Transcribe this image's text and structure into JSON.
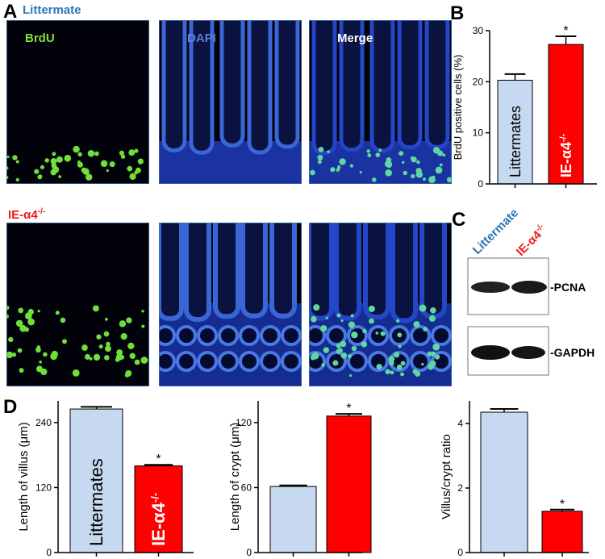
{
  "panel_labels": [
    "A",
    "B",
    "C",
    "D"
  ],
  "image_panels": {
    "row_labels": [
      {
        "text": "Littermate"
      },
      {
        "text": "IE-α4",
        "sup": "-/-"
      }
    ],
    "column_titles": [
      "BrdU",
      "DAPI",
      "Merge"
    ]
  },
  "blot": {
    "column_labels": [
      {
        "text": "Littermate"
      },
      {
        "text": "IE-α4",
        "sup": "-/-"
      }
    ],
    "band_labels": [
      "-PCNA",
      "-GAPDH"
    ]
  },
  "chart_data": [
    {
      "type": "bar",
      "ylabel": "BrdU positive cells (%)",
      "categories": [
        "Littermates",
        {
          "text": "IE-α4",
          "sup": "-/-"
        }
      ],
      "values": [
        20.3,
        27.3
      ],
      "errors": [
        1.2,
        1.6
      ],
      "colors": [
        "#c6d9f1",
        "#ff0000"
      ],
      "ylim": [
        0,
        30
      ],
      "yticks": [
        0,
        10,
        20,
        30
      ],
      "annotations": [
        {
          "text": "*",
          "category": 1
        }
      ]
    },
    {
      "type": "bar",
      "ylabel": "Length of villus (μm)",
      "categories": [
        "Littermates",
        {
          "text": "IE-α4",
          "sup": "-/-"
        }
      ],
      "values": [
        265,
        160
      ],
      "errors": [
        4,
        2
      ],
      "colors": [
        "#c6d9f1",
        "#ff0000"
      ],
      "ylim": [
        0,
        280
      ],
      "yticks": [
        0,
        120,
        240
      ],
      "annotations": [
        {
          "text": "*",
          "category": 1
        }
      ]
    },
    {
      "type": "bar",
      "ylabel": "Length of crypt (μm)",
      "categories": [
        null,
        null
      ],
      "values": [
        61,
        126
      ],
      "errors": [
        1,
        2
      ],
      "colors": [
        "#c6d9f1",
        "#ff0000"
      ],
      "ylim": [
        0,
        140
      ],
      "yticks": [
        0,
        60,
        120
      ],
      "annotations": [
        {
          "text": "*",
          "category": 1
        }
      ]
    },
    {
      "type": "bar",
      "ylabel": "Villus/crypt ratio",
      "categories": [
        null,
        null
      ],
      "values": [
        4.35,
        1.28
      ],
      "errors": [
        0.1,
        0.05
      ],
      "colors": [
        "#c6d9f1",
        "#ff0000"
      ],
      "ylim": [
        0,
        4.7
      ],
      "yticks": [
        0,
        2,
        4
      ],
      "annotations": [
        {
          "text": "*",
          "category": 1
        }
      ]
    }
  ]
}
